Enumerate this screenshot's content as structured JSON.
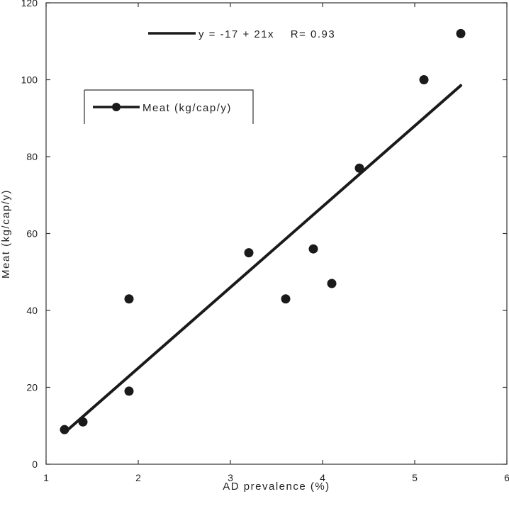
{
  "chart_data": {
    "type": "scatter",
    "xlabel": "AD prevalence (%)",
    "ylabel": "Meat (kg/cap/y)",
    "xlim": [
      1,
      6
    ],
    "ylim": [
      0,
      120
    ],
    "xticks": [
      "1",
      "2",
      "3",
      "4",
      "5",
      "6"
    ],
    "yticks": [
      "0",
      "20",
      "40",
      "60",
      "80",
      "100",
      "120"
    ],
    "grid": false,
    "legend": {
      "placement": "top-left",
      "entries": [
        "Meat (kg/cap/y)"
      ]
    },
    "series": [
      {
        "name": "Meat (kg/cap/y)",
        "x": [
          1.2,
          1.4,
          1.9,
          1.9,
          3.2,
          3.6,
          3.9,
          4.1,
          4.4,
          5.1,
          5.5
        ],
        "y": [
          9,
          11,
          19,
          43,
          55,
          43,
          56,
          47,
          77,
          100,
          112
        ]
      }
    ],
    "fit_line": {
      "intercept": -17,
      "slope": 21,
      "x_range": [
        1.2,
        5.5
      ]
    },
    "annotation": "y = -17 + 21x    R= 0.93"
  },
  "colors": {
    "marker": "#1a1a1a",
    "line": "#1a1a1a",
    "axis": "#333333"
  }
}
